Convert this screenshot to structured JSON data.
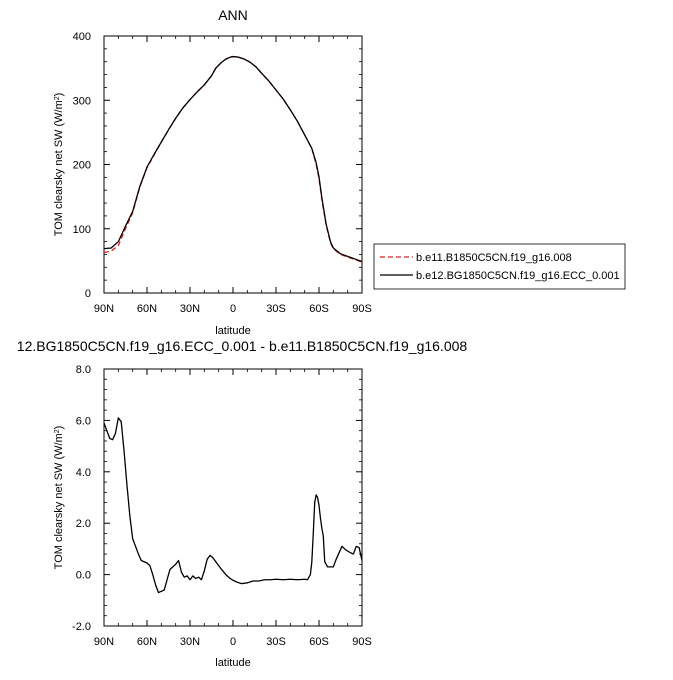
{
  "chart_data": [
    {
      "type": "line",
      "title": "ANN",
      "xlabel": "latitude",
      "ylabel": "TOM clearsky net SW (W/m²)",
      "ylabel_main": "TOM clearsky net SW (W/m",
      "ylabel_sup": "2",
      "ylabel_tail": ")",
      "xlim": [
        -90,
        90
      ],
      "ylim": [
        0,
        400
      ],
      "x_ticks": [
        -90,
        -60,
        -30,
        0,
        30,
        60,
        90
      ],
      "x_tick_labels": [
        "90N",
        "60N",
        "30N",
        "0",
        "30S",
        "60S",
        "90S"
      ],
      "y_ticks": [
        0,
        100,
        200,
        300,
        400
      ],
      "y_tick_labels": [
        "0",
        "100",
        "200",
        "300",
        "400"
      ],
      "grid": false,
      "legend_position": "right",
      "series": [
        {
          "name": "b.e11.B1850C5CN.f19_g16.008",
          "color": "#e31a1c",
          "dash": "dashed",
          "points": [
            [
              -90,
              63
            ],
            [
              -85,
              65
            ],
            [
              -80,
              74
            ],
            [
              -75,
              100
            ],
            [
              -70,
              125
            ],
            [
              -65,
              165
            ],
            [
              -60,
              195
            ],
            [
              -55,
              215
            ],
            [
              -50,
              235
            ],
            [
              -45,
              254
            ],
            [
              -40,
              272
            ],
            [
              -35,
              288
            ],
            [
              -30,
              301
            ],
            [
              -25,
              313
            ],
            [
              -20,
              324
            ],
            [
              -15,
              338
            ],
            [
              -12,
              350
            ],
            [
              -8,
              359
            ],
            [
              -5,
              364
            ],
            [
              -2,
              367
            ],
            [
              0,
              368
            ],
            [
              4,
              367
            ],
            [
              8,
              364
            ],
            [
              12,
              359
            ],
            [
              16,
              352
            ],
            [
              20,
              342
            ],
            [
              25,
              330
            ],
            [
              30,
              316
            ],
            [
              35,
              302
            ],
            [
              40,
              285
            ],
            [
              45,
              267
            ],
            [
              50,
              246
            ],
            [
              55,
              225
            ],
            [
              58,
              200
            ],
            [
              60,
              178
            ],
            [
              62,
              145
            ],
            [
              65,
              105
            ],
            [
              68,
              78
            ],
            [
              70,
              69
            ],
            [
              75,
              60
            ],
            [
              80,
              56
            ],
            [
              85,
              52
            ],
            [
              90,
              48
            ]
          ]
        },
        {
          "name": "b.e12.BG1850C5CN.f19_g16.ECC_0.001",
          "color": "#000000",
          "dash": "solid",
          "points": [
            [
              -90,
              69
            ],
            [
              -85,
              70
            ],
            [
              -80,
              80
            ],
            [
              -75,
              104
            ],
            [
              -70,
              127
            ],
            [
              -65,
              166
            ],
            [
              -60,
              196
            ],
            [
              -55,
              216
            ],
            [
              -50,
              235
            ],
            [
              -45,
              254
            ],
            [
              -40,
              272
            ],
            [
              -35,
              288
            ],
            [
              -30,
              301
            ],
            [
              -25,
              313
            ],
            [
              -20,
              324
            ],
            [
              -15,
              338
            ],
            [
              -12,
              350
            ],
            [
              -8,
              359
            ],
            [
              -5,
              364
            ],
            [
              -2,
              367
            ],
            [
              0,
              368
            ],
            [
              4,
              367
            ],
            [
              8,
              364
            ],
            [
              12,
              359
            ],
            [
              16,
              352
            ],
            [
              20,
              342
            ],
            [
              25,
              330
            ],
            [
              30,
              316
            ],
            [
              35,
              302
            ],
            [
              40,
              285
            ],
            [
              45,
              267
            ],
            [
              50,
              246
            ],
            [
              55,
              225
            ],
            [
              58,
              203
            ],
            [
              60,
              181
            ],
            [
              62,
              148
            ],
            [
              65,
              107
            ],
            [
              68,
              80
            ],
            [
              70,
              70
            ],
            [
              75,
              61
            ],
            [
              80,
              57
            ],
            [
              85,
              53
            ],
            [
              90,
              49
            ]
          ]
        }
      ]
    },
    {
      "type": "line",
      "title": "12.BG1850C5CN.f19_g16.ECC_0.001 - b.e11.B1850C5CN.f19_g16.008",
      "xlabel": "latitude",
      "ylabel": "TOM clearsky net SW (W/m²)",
      "ylabel_main": "TOM clearsky net SW (W/m",
      "ylabel_sup": "2",
      "ylabel_tail": ")",
      "xlim": [
        -90,
        90
      ],
      "ylim": [
        -2,
        8
      ],
      "x_ticks": [
        -90,
        -60,
        -30,
        0,
        30,
        60,
        90
      ],
      "x_tick_labels": [
        "90N",
        "60N",
        "30N",
        "0",
        "30S",
        "60S",
        "90S"
      ],
      "y_ticks": [
        -2,
        0,
        2,
        4,
        6,
        8
      ],
      "y_tick_labels": [
        "-2.0",
        "0.0",
        "2.0",
        "4.0",
        "6.0",
        "8.0"
      ],
      "grid": false,
      "series": [
        {
          "color": "#000000",
          "dash": "solid",
          "points": [
            [
              -90,
              5.9
            ],
            [
              -88,
              5.6
            ],
            [
              -86,
              5.3
            ],
            [
              -84,
              5.25
            ],
            [
              -82,
              5.5
            ],
            [
              -80,
              6.1
            ],
            [
              -78,
              5.95
            ],
            [
              -76,
              4.8
            ],
            [
              -74,
              3.5
            ],
            [
              -72,
              2.3
            ],
            [
              -70,
              1.4
            ],
            [
              -68,
              1.1
            ],
            [
              -66,
              0.8
            ],
            [
              -64,
              0.55
            ],
            [
              -62,
              0.5
            ],
            [
              -60,
              0.45
            ],
            [
              -58,
              0.35
            ],
            [
              -56,
              0.0
            ],
            [
              -54,
              -0.4
            ],
            [
              -52,
              -0.7
            ],
            [
              -50,
              -0.65
            ],
            [
              -48,
              -0.6
            ],
            [
              -46,
              -0.2
            ],
            [
              -44,
              0.2
            ],
            [
              -42,
              0.3
            ],
            [
              -40,
              0.4
            ],
            [
              -38,
              0.55
            ],
            [
              -36,
              0.1
            ],
            [
              -34,
              -0.1
            ],
            [
              -32,
              -0.05
            ],
            [
              -30,
              -0.2
            ],
            [
              -28,
              -0.05
            ],
            [
              -26,
              -0.15
            ],
            [
              -24,
              -0.1
            ],
            [
              -22,
              -0.2
            ],
            [
              -20,
              0.15
            ],
            [
              -18,
              0.6
            ],
            [
              -16,
              0.75
            ],
            [
              -14,
              0.65
            ],
            [
              -12,
              0.5
            ],
            [
              -10,
              0.35
            ],
            [
              -8,
              0.2
            ],
            [
              -5,
              0.0
            ],
            [
              -2,
              -0.15
            ],
            [
              0,
              -0.22
            ],
            [
              3,
              -0.3
            ],
            [
              6,
              -0.35
            ],
            [
              10,
              -0.32
            ],
            [
              14,
              -0.25
            ],
            [
              18,
              -0.25
            ],
            [
              22,
              -0.2
            ],
            [
              26,
              -0.2
            ],
            [
              30,
              -0.18
            ],
            [
              35,
              -0.2
            ],
            [
              40,
              -0.18
            ],
            [
              45,
              -0.2
            ],
            [
              50,
              -0.18
            ],
            [
              52,
              -0.2
            ],
            [
              54,
              0.0
            ],
            [
              55,
              0.5
            ],
            [
              56,
              1.6
            ],
            [
              57,
              2.8
            ],
            [
              58,
              3.1
            ],
            [
              59,
              3.0
            ],
            [
              60,
              2.7
            ],
            [
              61,
              2.2
            ],
            [
              62,
              1.8
            ],
            [
              63,
              1.5
            ],
            [
              64,
              0.5
            ],
            [
              66,
              0.3
            ],
            [
              70,
              0.3
            ],
            [
              72,
              0.6
            ],
            [
              76,
              1.1
            ],
            [
              79,
              0.95
            ],
            [
              82,
              0.85
            ],
            [
              84,
              0.8
            ],
            [
              86,
              1.1
            ],
            [
              88,
              1.05
            ],
            [
              90,
              0.55
            ]
          ]
        }
      ]
    }
  ]
}
